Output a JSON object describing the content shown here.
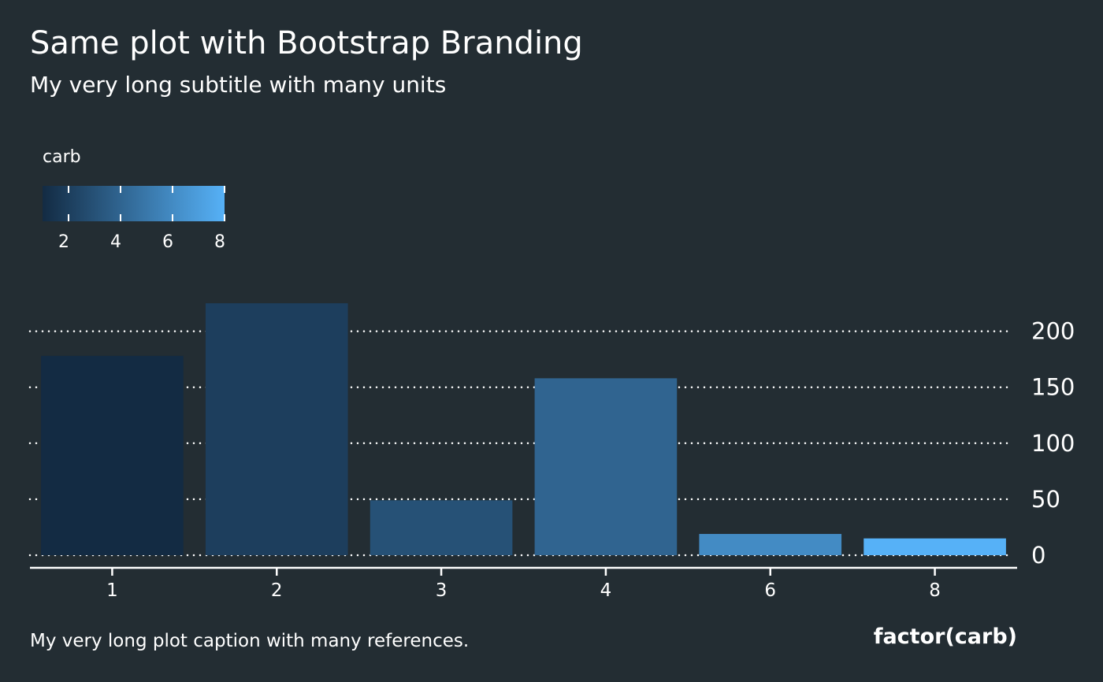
{
  "chart_data": {
    "type": "bar",
    "title": "Same plot with Bootstrap Branding",
    "subtitle": "My very long subtitle with many units",
    "caption": "My very long plot caption with many references.",
    "xlabel": "factor(carb)",
    "ylabel": "",
    "categories": [
      "1",
      "2",
      "3",
      "4",
      "6",
      "8"
    ],
    "values": [
      178,
      225,
      49,
      158,
      19,
      15
    ],
    "color_values": [
      1,
      2,
      3,
      4,
      6,
      8
    ],
    "ylim": [
      0,
      225
    ],
    "yticks": [
      0,
      50,
      100,
      150,
      200
    ],
    "y_axis_position": "right",
    "grid": "horizontal dotted",
    "legend": {
      "title": "carb",
      "placement": "top-left",
      "type": "colorbar",
      "ticks": [
        2,
        4,
        6,
        8
      ],
      "range": [
        1,
        8
      ],
      "low_color": "#132b43",
      "high_color": "#56b1f7"
    },
    "colors": {
      "background": "#232d33",
      "text": "#ffffff"
    }
  }
}
